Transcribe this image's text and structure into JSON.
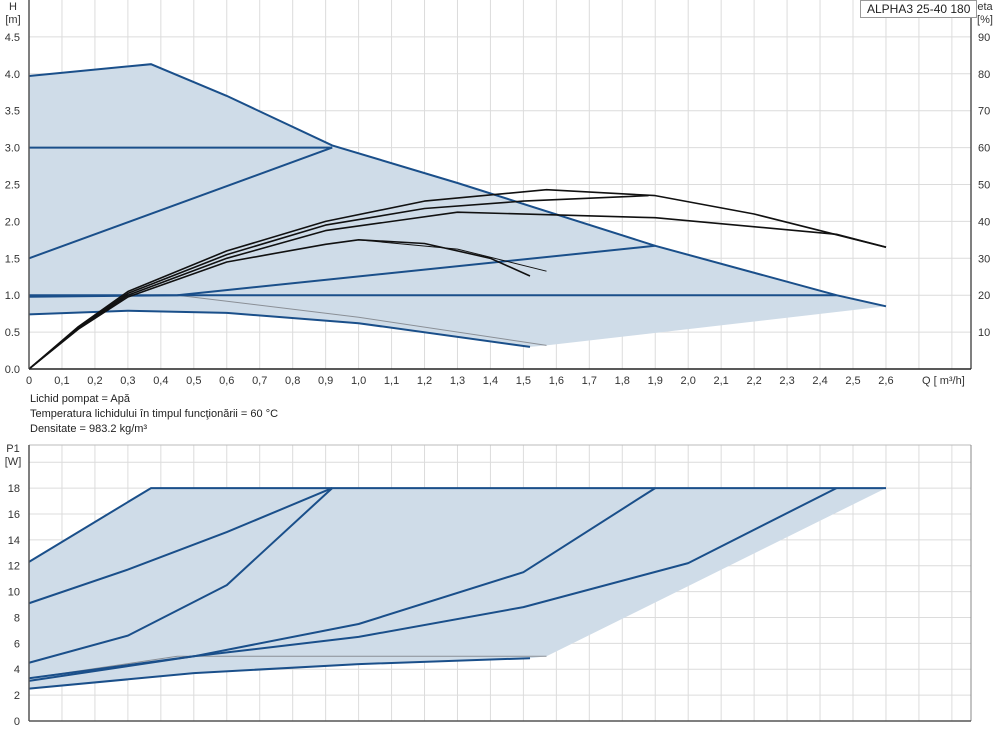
{
  "title": "ALPHA3 25-40 180",
  "info": {
    "line1": "Lichid pompat = Apă",
    "line2": " Temperatura lichidului în timpul funcţionării = 60  °C",
    "line3": "Densitate = 983.2  kg/m³"
  },
  "colors": {
    "curve": "#1a4f8a",
    "fill": "#cfdce8",
    "eta": "#111111",
    "thin": "#8a8f96",
    "grid": "#dcdcdc"
  },
  "chart_data": [
    {
      "type": "line",
      "ylabel": "H",
      "yunit": "[m]",
      "y2label": "eta",
      "y2unit": "[%]",
      "xlabel": "Q [ m³/h]",
      "xlim": [
        0,
        2.9
      ],
      "ylim": [
        0,
        5
      ],
      "y2lim": [
        0,
        100
      ],
      "xticks": [
        "0",
        "0,1",
        "0,2",
        "0,3",
        "0,4",
        "0,5",
        "0,6",
        "0,7",
        "0,8",
        "0,9",
        "1,0",
        "1,1",
        "1,2",
        "1,3",
        "1,4",
        "1,5",
        "1,6",
        "1,7",
        "1,8",
        "1,9",
        "2,0",
        "2,1",
        "2,2",
        "2,3",
        "2,4",
        "2,5",
        "2,6"
      ],
      "yticks": [
        "0.0",
        "0.5",
        "1.0",
        "1.5",
        "2.0",
        "2.5",
        "3.0",
        "3.5",
        "4.0",
        "4.5"
      ],
      "y2ticks": [
        "10",
        "20",
        "30",
        "40",
        "50",
        "60",
        "70",
        "80",
        "90"
      ],
      "grid": true,
      "area": [
        [
          0,
          0.74
        ],
        [
          0.3,
          0.79
        ],
        [
          0.6,
          0.76
        ],
        [
          1.0,
          0.62
        ],
        [
          1.52,
          0.3
        ],
        [
          1.57,
          0.32
        ],
        [
          2.6,
          0.85
        ],
        [
          2.45,
          1.0
        ],
        [
          1.9,
          1.67
        ],
        [
          1.3,
          2.52
        ],
        [
          0.92,
          3.03
        ],
        [
          0.6,
          3.7
        ],
        [
          0.37,
          4.13
        ],
        [
          0,
          3.97
        ]
      ],
      "head_curves": [
        [
          [
            0,
            3.97
          ],
          [
            0.37,
            4.13
          ],
          [
            0.6,
            3.7
          ],
          [
            0.92,
            3.03
          ],
          [
            1.3,
            2.52
          ],
          [
            1.9,
            1.67
          ],
          [
            2.45,
            1.0
          ],
          [
            2.6,
            0.85
          ]
        ],
        [
          [
            0,
            3.0
          ],
          [
            0.92,
            3.0
          ]
        ],
        [
          [
            0,
            1.5
          ],
          [
            0.92,
            3.0
          ]
        ],
        [
          [
            0,
            0.98
          ],
          [
            0.45,
            1.0
          ],
          [
            1.9,
            1.67
          ]
        ],
        [
          [
            0,
            1.0
          ],
          [
            2.45,
            1.0
          ]
        ],
        [
          [
            0,
            0.74
          ],
          [
            0.3,
            0.79
          ],
          [
            0.6,
            0.76
          ],
          [
            1.0,
            0.62
          ],
          [
            1.52,
            0.3
          ]
        ]
      ],
      "thin_curves": [
        [
          [
            0.45,
            1.0
          ],
          [
            1.0,
            0.7
          ],
          [
            1.57,
            0.32
          ]
        ]
      ],
      "eta_curves": [
        [
          [
            0,
            0
          ],
          [
            0.15,
            11.5
          ],
          [
            0.3,
            21
          ],
          [
            0.6,
            32
          ],
          [
            0.9,
            40
          ],
          [
            1.2,
            45.5
          ],
          [
            1.57,
            48.6
          ],
          [
            1.9,
            47
          ],
          [
            2.2,
            42
          ],
          [
            2.6,
            33
          ]
        ],
        [
          [
            0,
            0
          ],
          [
            0.15,
            11.2
          ],
          [
            0.3,
            20.5
          ],
          [
            0.6,
            31
          ],
          [
            0.9,
            39
          ],
          [
            1.2,
            43.5
          ],
          [
            1.5,
            45.5
          ],
          [
            1.88,
            47
          ]
        ],
        [
          [
            0,
            0
          ],
          [
            0.15,
            11
          ],
          [
            0.3,
            20
          ],
          [
            0.6,
            30
          ],
          [
            0.9,
            37.5
          ],
          [
            1.3,
            42.5
          ],
          [
            1.9,
            41
          ],
          [
            2.45,
            36.5
          ],
          [
            2.6,
            33
          ]
        ],
        [
          [
            0,
            0
          ],
          [
            0.15,
            10.8
          ],
          [
            0.3,
            19.5
          ],
          [
            0.6,
            29
          ],
          [
            0.9,
            33.8
          ],
          [
            1.0,
            35
          ],
          [
            1.2,
            34
          ],
          [
            1.4,
            30
          ],
          [
            1.52,
            25.2
          ]
        ],
        [
          [
            1.0,
            35
          ],
          [
            1.3,
            32.5
          ],
          [
            1.57,
            26.5
          ]
        ]
      ]
    },
    {
      "type": "line",
      "ylabel": "P1",
      "yunit": "[W]",
      "xlim": [
        0,
        2.9
      ],
      "ylim": [
        0,
        20
      ],
      "yticks": [
        "0",
        "2",
        "4",
        "6",
        "8",
        "10",
        "12",
        "14",
        "16",
        "18"
      ],
      "grid": true,
      "area": [
        [
          0,
          2.5
        ],
        [
          0.5,
          3.7
        ],
        [
          1.0,
          4.4
        ],
        [
          1.52,
          4.85
        ],
        [
          1.57,
          5.0
        ],
        [
          2.6,
          18
        ],
        [
          0.37,
          18
        ],
        [
          0,
          12.3
        ]
      ],
      "power_curves": [
        [
          [
            0,
            12.3
          ],
          [
            0.37,
            18
          ],
          [
            2.6,
            18
          ]
        ],
        [
          [
            0,
            9.1
          ],
          [
            0.3,
            11.7
          ],
          [
            0.6,
            14.6
          ],
          [
            0.92,
            18
          ]
        ],
        [
          [
            0,
            4.5
          ],
          [
            0.3,
            6.6
          ],
          [
            0.6,
            10.5
          ],
          [
            0.92,
            18
          ]
        ],
        [
          [
            0,
            3.3
          ],
          [
            0.5,
            5.0
          ],
          [
            1.0,
            7.5
          ],
          [
            1.5,
            11.5
          ],
          [
            1.9,
            18
          ]
        ],
        [
          [
            0,
            3.1
          ],
          [
            0.5,
            5.0
          ],
          [
            1.0,
            6.5
          ],
          [
            1.5,
            8.8
          ],
          [
            2.0,
            12.2
          ],
          [
            2.45,
            18
          ]
        ],
        [
          [
            0,
            2.5
          ],
          [
            0.5,
            3.7
          ],
          [
            1.0,
            4.4
          ],
          [
            1.52,
            4.85
          ]
        ]
      ],
      "thin_curves": [
        [
          [
            0,
            3.3
          ],
          [
            0.45,
            5.0
          ],
          [
            1.57,
            5.0
          ]
        ]
      ]
    }
  ]
}
